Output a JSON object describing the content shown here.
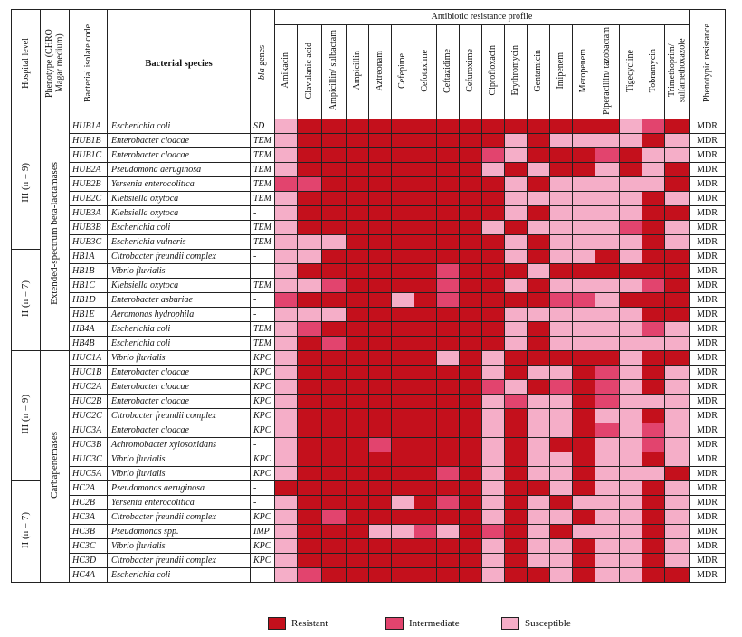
{
  "header": {
    "hospital_level": "Hospital level",
    "phenotype": "Phenotype (CHRO Magar medium)",
    "isolate_code": "Bacterial isolate code",
    "species": "Bacterial species",
    "bla_italic": "bla",
    "bla_rest": " genes",
    "profile_title": "Antibiotic resistance profile",
    "phenotypic_resistance": "Phenotypic resistance"
  },
  "antibiotics": [
    "Amikacin",
    "Clavulanic acid",
    "Ampicillin/ sulbactam",
    "Ampicillin",
    "Aztreonam",
    "Cefepime",
    "Cefotaxime",
    "Ceftazidime",
    "Cefuroxime",
    "Ciprofloxacin",
    "Erythromycin",
    "Gentamicin",
    "Imipenem",
    "Meropenem",
    "Piperacillin/ tazobactam",
    "Tigecycline",
    "Tobramycin",
    "Trimethoprim/ sulfamethoxazole"
  ],
  "groups": {
    "esbl": "Extended-spectrum beta-lactamases",
    "carb": "Carbapenemases",
    "h1": "III (n = 9)",
    "h2": "II (n = 7)",
    "h3": "III (n = 9)",
    "h4": "II (n = 7)"
  },
  "rows": [
    {
      "code": "HUB1A",
      "species": "Escherichia coli",
      "bla": "SD",
      "pheno": "MDR",
      "profile": "SRRRRRRRRRRRRRRSIR"
    },
    {
      "code": "HUB1B",
      "species": "Enterobacter cloacae",
      "bla": "TEM",
      "pheno": "MDR",
      "profile": "SRRRRRRRRRSRSSSSRS"
    },
    {
      "code": "HUB1C",
      "species": "Enterobacter cloacae",
      "bla": "TEM",
      "pheno": "MDR",
      "profile": "SRRRRRRRRISRRRIRSS"
    },
    {
      "code": "HUB2A",
      "species": "Pseudomona aeruginosa",
      "bla": "TEM",
      "pheno": "MDR",
      "profile": "SRRRRRRRRSRSRRSRSR"
    },
    {
      "code": "HUB2B",
      "species": "Yersenia enterocolitica",
      "bla": "TEM",
      "pheno": "MDR",
      "profile": "IIRRRRRRRRSRSSSSSR"
    },
    {
      "code": "HUB2C",
      "species": "Klebsiella oxytoca",
      "bla": "TEM",
      "pheno": "MDR",
      "profile": "SRRRRRRRRRSSSSSSRS"
    },
    {
      "code": "HUB3A",
      "species": "Klebsiella oxytoca",
      "bla": "-",
      "pheno": "MDR",
      "profile": "SRRRRRRRRRSRSSSSRR"
    },
    {
      "code": "HUB3B",
      "species": "Escherichia coli",
      "bla": "TEM",
      "pheno": "MDR",
      "profile": "SRRRRRRRRSRSSSSIRS"
    },
    {
      "code": "HUB3C",
      "species": "Escherichia vulneris",
      "bla": "TEM",
      "pheno": "MDR",
      "profile": "SSSRRRRRRRSRSSSSRS"
    },
    {
      "code": "HB1A",
      "species": "Citrobacter freundii complex",
      "bla": "-",
      "pheno": "MDR",
      "profile": "SSRRRRRRRRSRSSRSRR"
    },
    {
      "code": "HB1B",
      "species": "Vibrio fluvialis",
      "bla": "-",
      "pheno": "MDR",
      "profile": "SRRRRRRIRRRSRRRRRR"
    },
    {
      "code": "HB1C",
      "species": "Klebsiella oxytoca",
      "bla": "TEM",
      "pheno": "MDR",
      "profile": "SSIRRRRIRRSRSSSSIR"
    },
    {
      "code": "HB1D",
      "species": "Enterobacter asburiae",
      "bla": "-",
      "pheno": "MDR",
      "profile": "IRRRRSRIRRRRIISRRR"
    },
    {
      "code": "HB1E",
      "species": "Aeromonas hydrophila",
      "bla": "-",
      "pheno": "MDR",
      "profile": "SSSRRRRRRRSSSSSSRR"
    },
    {
      "code": "HB4A",
      "species": "Escherichia coli",
      "bla": "TEM",
      "pheno": "MDR",
      "profile": "SIRRRRRRRRSRSSSSIS"
    },
    {
      "code": "HB4B",
      "species": "Escherichia coli",
      "bla": "TEM",
      "pheno": "MDR",
      "profile": "SRIRRRRRRRSRSSSSSS"
    },
    {
      "code": "HUC1A",
      "species": "Vibrio fluvialis",
      "bla": "KPC",
      "pheno": "MDR",
      "profile": "SRRRRRRSRSRRRRRSRR"
    },
    {
      "code": "HUC1B",
      "species": "Enterobacter cloacae",
      "bla": "KPC",
      "pheno": "MDR",
      "profile": "SRRRRRRRRSRSSRISRS"
    },
    {
      "code": "HUC2A",
      "species": "Enterobacter cloacae",
      "bla": "KPC",
      "pheno": "MDR",
      "profile": "SRRRRRRRRISRIRISRS"
    },
    {
      "code": "HUC2B",
      "species": "Enterobacter cloacae",
      "bla": "KPC",
      "pheno": "MDR",
      "profile": "SRRRRRRRRSISSRISSS"
    },
    {
      "code": "HUC2C",
      "species": "Citrobacter freundii complex",
      "bla": "KPC",
      "pheno": "MDR",
      "profile": "SRRRRRRRRSRSSRSSRS"
    },
    {
      "code": "HUC3A",
      "species": "Enterobacter cloacae",
      "bla": "KPC",
      "pheno": "MDR",
      "profile": "SRRRRRRRRSRSSRISIS"
    },
    {
      "code": "HUC3B",
      "species": "Achromobacter xylosoxidans",
      "bla": "-",
      "pheno": "MDR",
      "profile": "SRRRIRRRRSRSRRSSIS"
    },
    {
      "code": "HUC3C",
      "species": "Vibrio fluvialis",
      "bla": "KPC",
      "pheno": "MDR",
      "profile": "SRRRRRRRRSRSSRSSRS"
    },
    {
      "code": "HUC5A",
      "species": "Vibrio fluvialis",
      "bla": "KPC",
      "pheno": "MDR",
      "profile": "SRRRRRRIRSRSSRSSSR"
    },
    {
      "code": "HC2A",
      "species": "Pseudomonas aeruginosa",
      "bla": "-",
      "pheno": "MDR",
      "profile": "RRRRRRRRRSRRSRSSRS"
    },
    {
      "code": "HC2B",
      "species": "Yersenia enterocolitica",
      "bla": "-",
      "pheno": "MDR",
      "profile": "SRRRRSRIRSRSRSSSRS"
    },
    {
      "code": "HC3A",
      "species": "Citrobacter freundii complex",
      "bla": "KPC",
      "pheno": "MDR",
      "profile": "SRIRRRRRRSRSSRSSRS"
    },
    {
      "code": "HC3B",
      "species": "Pseudomonas spp.",
      "bla": "IMP",
      "pheno": "MDR",
      "profile": "SRRRSSISRIRSRSSSRS"
    },
    {
      "code": "HC3C",
      "species": "Vibrio fluvialis",
      "bla": "KPC",
      "pheno": "MDR",
      "profile": "SRRRRRRRRSRSSRSSRS"
    },
    {
      "code": "HC3D",
      "species": "Citrobacter freundii complex",
      "bla": "KPC",
      "pheno": "MDR",
      "profile": "SRRRRRRRRSRSSRSSRS"
    },
    {
      "code": "HC4A",
      "species": "Escherichia coli",
      "bla": "-",
      "pheno": "MDR",
      "profile": "SIRRRRRRRSRRSRSSRR"
    }
  ],
  "legend": {
    "resistant": "Resistant",
    "intermediate": "Intermediate",
    "susceptible": "Susceptible",
    "colors": {
      "resistant": "#c4101c",
      "intermediate": "#e2446e",
      "susceptible": "#f5aec8"
    }
  }
}
